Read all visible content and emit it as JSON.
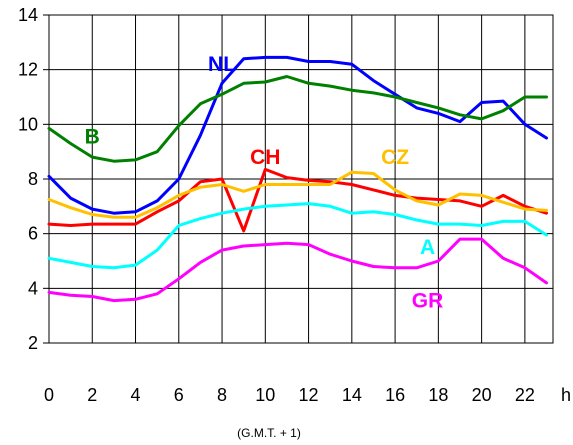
{
  "chart_data": {
    "type": "line",
    "title": "",
    "xlabel": "(G.M.T. + 1)",
    "ylabel": "",
    "x_unit_label": "h",
    "xlim": [
      0,
      23.3
    ],
    "ylim": [
      2,
      14
    ],
    "x_ticks": [
      0,
      2,
      4,
      6,
      8,
      10,
      12,
      14,
      16,
      18,
      20,
      22
    ],
    "y_ticks": [
      2,
      4,
      6,
      8,
      10,
      12,
      14
    ],
    "grid": true,
    "legend": "labels placed next to each series",
    "x": [
      0,
      1,
      2,
      3,
      4,
      5,
      6,
      7,
      8,
      9,
      10,
      11,
      12,
      13,
      14,
      15,
      16,
      17,
      18,
      19,
      20,
      21,
      22,
      23
    ],
    "series": [
      {
        "name": "NL",
        "color": "#0000ff",
        "values": [
          8.1,
          7.3,
          6.9,
          6.75,
          6.8,
          7.2,
          8.0,
          9.6,
          11.5,
          12.4,
          12.45,
          12.45,
          12.3,
          12.3,
          12.2,
          11.6,
          11.1,
          10.6,
          10.4,
          10.1,
          10.8,
          10.85,
          10.0,
          9.5
        ]
      },
      {
        "name": "B",
        "color": "#008000",
        "values": [
          9.85,
          9.3,
          8.8,
          8.65,
          8.7,
          9.0,
          9.95,
          10.75,
          11.1,
          11.5,
          11.55,
          11.75,
          11.5,
          11.4,
          11.25,
          11.15,
          11.0,
          10.8,
          10.6,
          10.35,
          10.2,
          10.5,
          11.0,
          11.0
        ]
      },
      {
        "name": "CH",
        "color": "#ff0000",
        "values": [
          6.35,
          6.3,
          6.35,
          6.35,
          6.35,
          6.8,
          7.2,
          7.9,
          8.0,
          6.1,
          8.35,
          8.05,
          7.95,
          7.9,
          7.8,
          7.6,
          7.4,
          7.3,
          7.25,
          7.2,
          7.0,
          7.4,
          7.0,
          6.75
        ]
      },
      {
        "name": "CZ",
        "color": "#ffc000",
        "values": [
          7.25,
          6.95,
          6.7,
          6.6,
          6.6,
          6.95,
          7.4,
          7.7,
          7.8,
          7.55,
          7.8,
          7.8,
          7.8,
          7.8,
          8.25,
          8.2,
          7.6,
          7.2,
          7.05,
          7.45,
          7.4,
          7.15,
          6.9,
          6.85
        ]
      },
      {
        "name": "A",
        "color": "#00ffff",
        "values": [
          5.1,
          4.95,
          4.8,
          4.75,
          4.85,
          5.4,
          6.3,
          6.55,
          6.75,
          6.9,
          7.0,
          7.05,
          7.1,
          7.0,
          6.75,
          6.8,
          6.7,
          6.5,
          6.35,
          6.35,
          6.3,
          6.45,
          6.45,
          5.95
        ]
      },
      {
        "name": "GR",
        "color": "#ff00ff",
        "values": [
          3.85,
          3.75,
          3.7,
          3.55,
          3.6,
          3.8,
          4.35,
          4.95,
          5.4,
          5.55,
          5.6,
          5.65,
          5.6,
          5.25,
          5.0,
          4.8,
          4.75,
          4.75,
          5.0,
          5.8,
          5.8,
          5.1,
          4.75,
          4.2
        ]
      }
    ]
  }
}
